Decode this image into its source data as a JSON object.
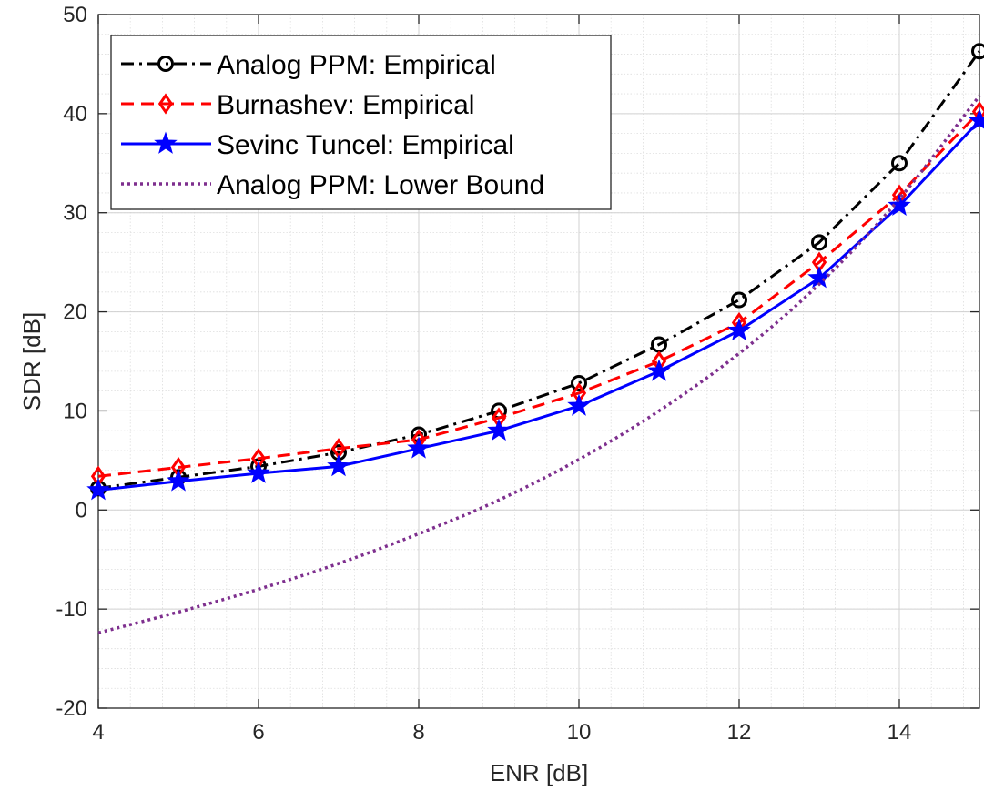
{
  "chart_data": {
    "type": "line",
    "xlabel": "ENR [dB]",
    "ylabel": "SDR [dB]",
    "xlim": [
      4,
      15
    ],
    "ylim": [
      -20,
      50
    ],
    "xticks": [
      4,
      6,
      8,
      10,
      12,
      14
    ],
    "yticks": [
      -20,
      -10,
      0,
      10,
      20,
      30,
      40,
      50
    ],
    "grid": true,
    "minor_grid": true,
    "legend_position": "top-left",
    "series": [
      {
        "name": "Analog PPM: Empirical",
        "color": "#000000",
        "line": "dash-dot",
        "marker": "circle",
        "x": [
          4,
          5,
          6,
          7,
          8,
          9,
          10,
          11,
          12,
          13,
          14,
          15
        ],
        "y": [
          2.2,
          3.3,
          4.4,
          5.8,
          7.6,
          10.0,
          12.8,
          16.7,
          21.2,
          27.0,
          35.0,
          46.3
        ]
      },
      {
        "name": "Burnashev: Empirical",
        "color": "#ff0000",
        "line": "dashed",
        "marker": "diamond",
        "x": [
          4,
          5,
          6,
          7,
          8,
          9,
          10,
          11,
          12,
          13,
          14,
          15
        ],
        "y": [
          3.4,
          4.3,
          5.2,
          6.2,
          7.1,
          9.3,
          11.8,
          15.0,
          18.9,
          25.0,
          31.8,
          40.2
        ]
      },
      {
        "name": "Sevinc Tuncel: Empirical",
        "color": "#0000ff",
        "line": "solid",
        "marker": "star",
        "x": [
          4,
          5,
          6,
          7,
          8,
          9,
          10,
          11,
          12,
          13,
          14,
          15
        ],
        "y": [
          2.0,
          2.9,
          3.7,
          4.4,
          6.2,
          8.0,
          10.5,
          14.0,
          18.1,
          23.4,
          30.7,
          39.3
        ]
      },
      {
        "name": "Analog PPM: Lower Bound",
        "color": "#7e2f8e",
        "line": "dotted",
        "marker": "none",
        "x": [
          4,
          5,
          6,
          7,
          8,
          9,
          10,
          11,
          12,
          13,
          14,
          15
        ],
        "y": [
          -12.4,
          -10.3,
          -8.0,
          -5.4,
          -2.4,
          1.0,
          5.1,
          10.0,
          15.8,
          22.8,
          31.4,
          41.8
        ]
      }
    ]
  }
}
